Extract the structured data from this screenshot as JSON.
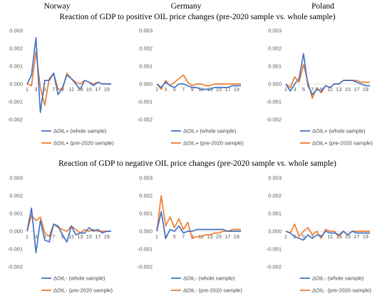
{
  "column_titles": [
    "Norway",
    "Germany",
    "Poland"
  ],
  "section_titles": [
    "Reaction of GDP to positive OIL price changes (pre-2020 sample vs. whole sample)",
    "Reaction of GDP to negative OIL price changes (pre-2020 sample vs. whole sample)"
  ],
  "colors": {
    "whole": "#4472c4",
    "pre2020": "#ed7d31",
    "zero_line": "#d9d9d9"
  },
  "chart_data": [
    {
      "type": "line",
      "panel": "Norway (positive)",
      "x": [
        1,
        2,
        3,
        4,
        5,
        6,
        7,
        8,
        9,
        10,
        11,
        12,
        13,
        14,
        15,
        16,
        17,
        18,
        19,
        20
      ],
      "ylim": [
        -0.002,
        0.003
      ],
      "ytick_labels": [
        "0.003",
        "0.002",
        "0.001",
        "0.000",
        "-0.001",
        "-0.002"
      ],
      "xtick_labels": [
        "1",
        "3",
        "5",
        "7",
        "9",
        "11",
        "13",
        "15",
        "17",
        "19"
      ],
      "series": [
        {
          "name": "ΔOIL+ (whole sample)",
          "values": [
            0.0,
            0.0005,
            0.0026,
            -0.0016,
            0.0002,
            0.0002,
            0.0006,
            -0.0006,
            -0.0002,
            0.0005,
            0.0003,
            0.0,
            -0.0003,
            0.0002,
            0.0001,
            -0.0001,
            0.0001,
            0.0,
            0.0,
            0.0
          ]
        },
        {
          "name": "ΔOIL+ (pre-2020 sample)",
          "values": [
            0.0,
            -0.0001,
            0.0018,
            -0.0002,
            -0.0012,
            0.0003,
            0.0006,
            -0.0003,
            -0.0003,
            0.0006,
            0.0003,
            0.0001,
            0.0,
            0.0002,
            0.0001,
            0.0,
            0.0001,
            0.0,
            0.0,
            0.0
          ]
        }
      ]
    },
    {
      "type": "line",
      "panel": "Germany (positive)",
      "x": [
        1,
        2,
        3,
        4,
        5,
        6,
        7,
        8,
        9,
        10,
        11,
        12,
        13,
        14,
        15,
        16,
        17,
        18,
        19,
        20
      ],
      "ylim": [
        -0.002,
        0.003
      ],
      "ytick_labels": [
        "0.003",
        "0.002",
        "0.001",
        "0.000",
        "-0.001",
        "-0.002"
      ],
      "xtick_labels": [
        "1",
        "3",
        "5",
        "7",
        "9",
        "11",
        "13",
        "15",
        "17",
        "19"
      ],
      "series": [
        {
          "name": "ΔOIL+ (whole sample)",
          "values": [
            0.0,
            -0.0002,
            0.0001,
            -0.0001,
            -0.0002,
            0.0,
            0.0,
            -0.0001,
            -0.0002,
            -0.0002,
            -0.0003,
            -0.0003,
            -0.0003,
            -0.0002,
            -0.0002,
            -0.0002,
            -0.0002,
            -0.0001,
            -0.0001,
            -0.0001
          ]
        },
        {
          "name": "ΔOIL+ (pre-2020 sample)",
          "values": [
            0.0,
            -0.0003,
            0.0002,
            -0.0001,
            0.0001,
            0.0003,
            0.0005,
            0.0001,
            -0.0001,
            0.0,
            0.0,
            -0.0001,
            -0.0001,
            0.0,
            0.0,
            0.0,
            0.0,
            0.0,
            0.0,
            0.0
          ]
        }
      ]
    },
    {
      "type": "line",
      "panel": "Poland (positive)",
      "x": [
        1,
        2,
        3,
        4,
        5,
        6,
        7,
        8,
        9,
        10,
        11,
        12,
        13,
        14,
        15,
        16,
        17,
        18,
        19,
        20
      ],
      "ylim": [
        -0.002,
        0.003
      ],
      "ytick_labels": [
        "0.003",
        "0.002",
        "0.001",
        "0.000",
        "-0.001",
        "-0.002"
      ],
      "xtick_labels": [
        "1",
        "3",
        "5",
        "7",
        "9",
        "11",
        "13",
        "15",
        "17",
        "19"
      ],
      "series": [
        {
          "name": "ΔOIL+ (whole sample)",
          "values": [
            0.0,
            -0.0004,
            0.0,
            0.0003,
            0.0017,
            -0.0001,
            -0.0006,
            -0.0003,
            -0.0004,
            -0.0001,
            -0.0002,
            0.0,
            0.0,
            0.0002,
            0.0002,
            0.0002,
            0.0001,
            0.0,
            -0.0001,
            -0.0001
          ]
        },
        {
          "name": "ΔOIL+ (pre-2020 sample)",
          "values": [
            0.0,
            -0.0002,
            0.0004,
            0.0001,
            0.0011,
            0.0001,
            -0.0008,
            -0.0002,
            -0.0005,
            -0.0001,
            -0.0002,
            0.0,
            0.0,
            0.0002,
            0.0002,
            0.0002,
            0.0002,
            0.0001,
            0.0001,
            0.0001
          ]
        }
      ]
    },
    {
      "type": "line",
      "panel": "Norway (negative)",
      "x": [
        1,
        2,
        3,
        4,
        5,
        6,
        7,
        8,
        9,
        10,
        11,
        12,
        13,
        14,
        15,
        16,
        17,
        18,
        19,
        20
      ],
      "ylim": [
        -0.002,
        0.003
      ],
      "ytick_labels": [
        "0.003",
        "0.002",
        "0.001",
        "0.000",
        "-0.001",
        "-0.002"
      ],
      "xtick_labels": [
        "1",
        "3",
        "5",
        "7",
        "9",
        "11",
        "13",
        "15",
        "17",
        "19"
      ],
      "series": [
        {
          "name": "ΔOIL- (whole sample)",
          "values": [
            0.0,
            0.0013,
            -0.0012,
            0.0006,
            -0.0005,
            -0.0006,
            0.0004,
            0.0003,
            -0.0002,
            -0.0006,
            0.0003,
            -0.0002,
            -0.0001,
            -0.0001,
            0.0002,
            0.0,
            0.0001,
            -0.0001,
            0.0,
            0.0
          ]
        },
        {
          "name": "ΔOIL- (pre-2020 sample)",
          "values": [
            0.0,
            0.0009,
            0.0006,
            0.0008,
            -0.0001,
            -0.0003,
            0.0004,
            0.0002,
            0.0001,
            0.0,
            0.0003,
            0.0001,
            -0.0001,
            0.0001,
            0.0,
            0.0001,
            0.0,
            0.0,
            0.0,
            0.0
          ]
        }
      ]
    },
    {
      "type": "line",
      "panel": "Germany (negative)",
      "x": [
        1,
        2,
        3,
        4,
        5,
        6,
        7,
        8,
        9,
        10,
        11,
        12,
        13,
        14,
        15,
        16,
        17,
        18,
        19,
        20
      ],
      "ylim": [
        -0.002,
        0.003
      ],
      "ytick_labels": [
        "0.003",
        "0.002",
        "0.001",
        "0.000",
        "-0.001",
        "-0.002"
      ],
      "xtick_labels": [
        "1",
        "3",
        "5",
        "7",
        "9",
        "11",
        "13",
        "15",
        "17",
        "19"
      ],
      "series": [
        {
          "name": "ΔOIL- (whole sample)",
          "values": [
            0.0,
            0.0011,
            -0.0004,
            0.0001,
            0.0,
            0.0003,
            -0.0001,
            0.0,
            0.0,
            0.0001,
            0.0001,
            0.0001,
            0.0001,
            0.0001,
            0.0001,
            0.0001,
            0.0,
            0.0,
            0.0,
            0.0
          ]
        },
        {
          "name": "ΔOIL- (pre-2020 sample)",
          "values": [
            0.0,
            0.002,
            0.0003,
            0.0008,
            0.0002,
            0.0007,
            0.0001,
            0.0005,
            -0.0004,
            -0.0003,
            -0.0003,
            -0.0002,
            -0.0002,
            -0.0001,
            -0.0001,
            0.0,
            0.0,
            0.0001,
            0.0001,
            0.0001
          ]
        }
      ]
    },
    {
      "type": "line",
      "panel": "Poland (negative)",
      "x": [
        1,
        2,
        3,
        4,
        5,
        6,
        7,
        8,
        9,
        10,
        11,
        12,
        13,
        14,
        15,
        16,
        17,
        18,
        19,
        20
      ],
      "ylim": [
        -0.002,
        0.003
      ],
      "ytick_labels": [
        "0.003",
        "0.002",
        "0.001",
        "0.000",
        "-0.001",
        "-0.002"
      ],
      "xtick_labels": [
        "1",
        "3",
        "5",
        "7",
        "9",
        "11",
        "13",
        "15",
        "17",
        "19"
      ],
      "series": [
        {
          "name": "ΔOIL- (whole sample)",
          "values": [
            0.0,
            -0.0001,
            -0.0003,
            -0.0004,
            -0.0005,
            -0.0002,
            -0.0004,
            -0.0002,
            -0.0003,
            0.0,
            -0.0001,
            -0.0001,
            -0.0002,
            0.0,
            -0.0002,
            0.0,
            -0.0001,
            -0.0001,
            -0.0001,
            -0.0001
          ]
        },
        {
          "name": "ΔOIL- (pre-2020 sample)",
          "values": [
            0.0,
            -0.0001,
            0.0004,
            -0.0003,
            0.0,
            0.0002,
            -0.0002,
            0.0,
            -0.0004,
            0.0001,
            0.0,
            0.0,
            -0.0003,
            0.0,
            -0.0002,
            0.0,
            0.0,
            0.0,
            0.0,
            0.0
          ]
        }
      ]
    }
  ]
}
